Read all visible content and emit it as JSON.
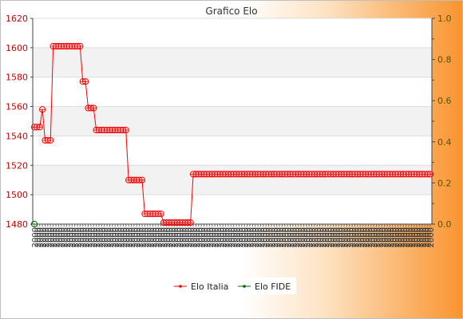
{
  "chart_data": {
    "type": "line",
    "title": "Grafico Elo",
    "y_left": {
      "ylim": [
        1480,
        1620
      ],
      "ticks": [
        1480,
        1500,
        1520,
        1540,
        1560,
        1580,
        1600,
        1620
      ]
    },
    "y_right": {
      "ylim": [
        0.0,
        1.0
      ],
      "ticks": [
        "0.0",
        "0.2",
        "0.4",
        "0.6",
        "0.8",
        "1.0"
      ]
    },
    "grid": "horizontal bands",
    "legend_position": "bottom",
    "n_points": 148,
    "x_label_text": "2000",
    "series": [
      {
        "name": "Elo Italia",
        "color": "#ff0000",
        "axis": "left",
        "values": [
          1546,
          1546,
          1546,
          1558,
          1537,
          1537,
          1537,
          1601,
          1601,
          1601,
          1601,
          1601,
          1601,
          1601,
          1601,
          1601,
          1601,
          1601,
          1577,
          1577,
          1559,
          1559,
          1559,
          1544,
          1544,
          1544,
          1544,
          1544,
          1544,
          1544,
          1544,
          1544,
          1544,
          1544,
          1544,
          1510,
          1510,
          1510,
          1510,
          1510,
          1510,
          1487,
          1487,
          1487,
          1487,
          1487,
          1487,
          1487,
          1481,
          1481,
          1481,
          1481,
          1481,
          1481,
          1481,
          1481,
          1481,
          1481,
          1481,
          1514,
          1514,
          1514,
          1514,
          1514,
          1514,
          1514,
          1514,
          1514,
          1514,
          1514,
          1514,
          1514,
          1514,
          1514,
          1514,
          1514,
          1514,
          1514,
          1514,
          1514,
          1514,
          1514,
          1514,
          1514,
          1514,
          1514,
          1514,
          1514,
          1514,
          1514,
          1514,
          1514,
          1514,
          1514,
          1514,
          1514,
          1514,
          1514,
          1514,
          1514,
          1514,
          1514,
          1514,
          1514,
          1514,
          1514,
          1514,
          1514,
          1514,
          1514,
          1514,
          1514,
          1514,
          1514,
          1514,
          1514,
          1514,
          1514,
          1514,
          1514,
          1514,
          1514,
          1514,
          1514,
          1514,
          1514,
          1514,
          1514,
          1514,
          1514,
          1514,
          1514,
          1514,
          1514,
          1514,
          1514,
          1514,
          1514,
          1514,
          1514,
          1514,
          1514,
          1514,
          1514,
          1514,
          1514,
          1514,
          1514
        ]
      },
      {
        "name": "Elo FIDE",
        "color": "#006600",
        "axis": "left",
        "values": [
          1480
        ]
      }
    ]
  }
}
